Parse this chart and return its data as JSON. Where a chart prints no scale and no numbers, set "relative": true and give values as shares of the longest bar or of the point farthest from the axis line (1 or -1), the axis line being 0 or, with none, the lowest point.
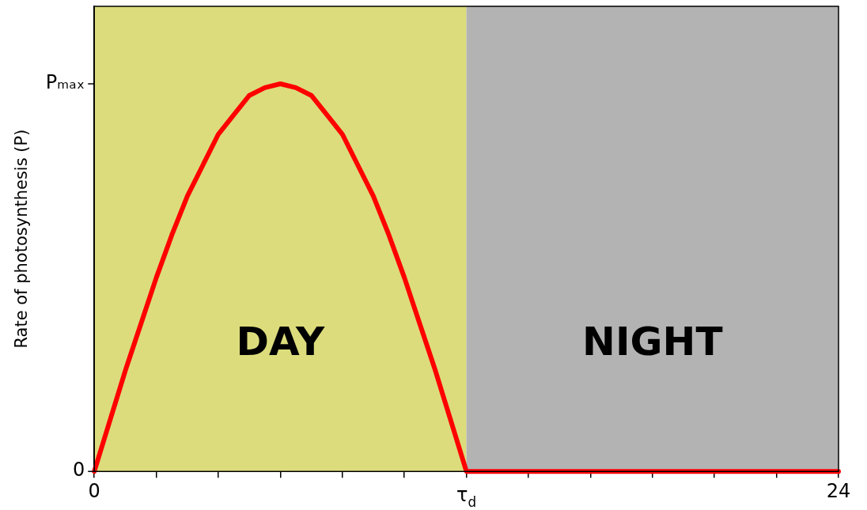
{
  "chart_data": {
    "type": "line",
    "ylabel": "Rate of photosynthesis (P)",
    "series": [
      {
        "color": "#ff0000",
        "x": [
          0,
          0.5,
          1,
          1.5,
          2,
          2.5,
          3,
          3.5,
          4,
          4.5,
          5,
          5.5,
          6,
          6.5,
          7,
          7.5,
          8,
          8.5,
          9,
          9.5,
          10,
          10.5,
          11,
          11.5,
          12,
          24
        ],
        "values": [
          0,
          0.13,
          0.26,
          0.38,
          0.5,
          0.61,
          0.71,
          0.79,
          0.87,
          0.92,
          0.97,
          0.99,
          1,
          0.99,
          0.97,
          0.92,
          0.87,
          0.79,
          0.71,
          0.61,
          0.5,
          0.38,
          0.26,
          0.13,
          0,
          0
        ]
      }
    ],
    "xlim": [
      0,
      24
    ],
    "xticks": [
      0,
      {
        "value": 2,
        "label": null
      },
      {
        "value": 4,
        "label": null
      },
      {
        "value": 6,
        "label": null
      },
      {
        "value": 8,
        "label": null
      },
      {
        "value": 10,
        "label": null
      },
      {
        "value": 12,
        "label": "τ$_{d}$"
      },
      {
        "value": 14,
        "label": null
      },
      {
        "value": 16,
        "label": null
      },
      {
        "value": 18,
        "label": null
      },
      {
        "value": 20,
        "label": null
      },
      {
        "value": 22,
        "label": null
      },
      24
    ],
    "relative": true,
    "annotations": [
      {
        "text": "Pₘₐₓ",
        "x": 0,
        "y": 1
      },
      {
        "text": "0",
        "x": 0,
        "y": 0
      }
    ],
    "bands": [
      {
        "axis": "x",
        "from": 0,
        "to": 12,
        "label": "DAY",
        "color": "#dcdc7c"
      },
      {
        "axis": "x",
        "from": 12,
        "to": 24,
        "label": "NIGHT",
        "color": "#b3b3b3"
      }
    ],
    "grid": false,
    "legend": false,
    "marker": "none",
    "line_style": "solid"
  }
}
